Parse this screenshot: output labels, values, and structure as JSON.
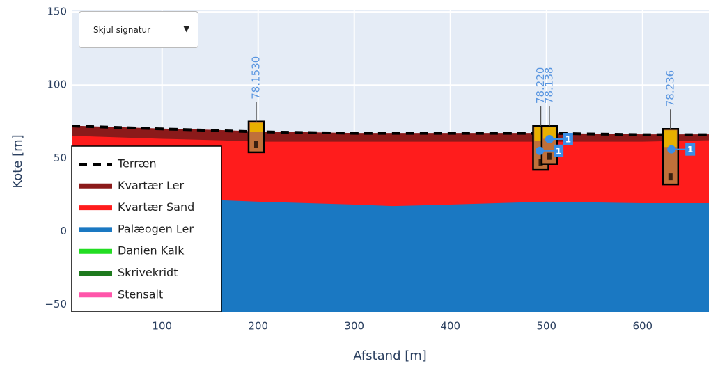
{
  "dropdown": "Skjul signatur",
  "chart_data": {
    "type": "geosection",
    "xlabel": "Afstand [m]",
    "ylabel": "Kote [m]",
    "xlim": [
      6,
      669
    ],
    "ylim": [
      -55,
      151
    ],
    "xticks": [
      100,
      200,
      300,
      400,
      500,
      600
    ],
    "yticks": [
      {
        "value": -50,
        "label": "−50"
      },
      0,
      50,
      100,
      150
    ],
    "grid": true,
    "terrain": {
      "name": "Terræn",
      "color": "#000000",
      "x": [
        6,
        100,
        200,
        300,
        400,
        500,
        600,
        669
      ],
      "values": [
        72,
        70,
        68,
        67,
        67,
        67,
        66,
        66
      ]
    },
    "x": [
      6,
      100,
      160,
      200,
      300,
      340,
      400,
      500,
      600,
      669
    ],
    "series": [
      {
        "name": "Kvartær Ler",
        "color": "#8b1a1a",
        "values": [
          72,
          70,
          69,
          68,
          67,
          67,
          67,
          67,
          66,
          66
        ]
      },
      {
        "name": "Kvartær Sand",
        "color": "#ff1c1c",
        "values": [
          65,
          63,
          62,
          61,
          61,
          61,
          61,
          61,
          61,
          62
        ]
      },
      {
        "name": "Palæogen Ler",
        "color": "#1a78c2",
        "values": [
          22,
          21,
          21,
          20,
          18,
          17,
          18,
          20,
          19,
          19
        ]
      }
    ],
    "legend_only": [
      {
        "name": "Danien Kalk",
        "color": "#22dd22"
      },
      {
        "name": "Skrivekridt",
        "color": "#1e7a1e"
      },
      {
        "name": "Stensalt",
        "color": "#ff55aa"
      }
    ],
    "legend": "lower-left",
    "boreholes": [
      {
        "name": "78.1530",
        "x": 198,
        "top": 75,
        "bottom": 54
      },
      {
        "name": "78.220",
        "x": 494,
        "top": 72,
        "bottom": 42
      },
      {
        "name": "78.138",
        "x": 503,
        "top": 72,
        "bottom": 46
      },
      {
        "name": "78.236",
        "x": 629,
        "top": 70,
        "bottom": 32
      }
    ],
    "water_levels": [
      {
        "x": 503,
        "y": 63,
        "label": "1"
      },
      {
        "x": 493,
        "y": 55,
        "label": "1"
      },
      {
        "x": 630,
        "y": 56,
        "label": "1"
      }
    ]
  }
}
